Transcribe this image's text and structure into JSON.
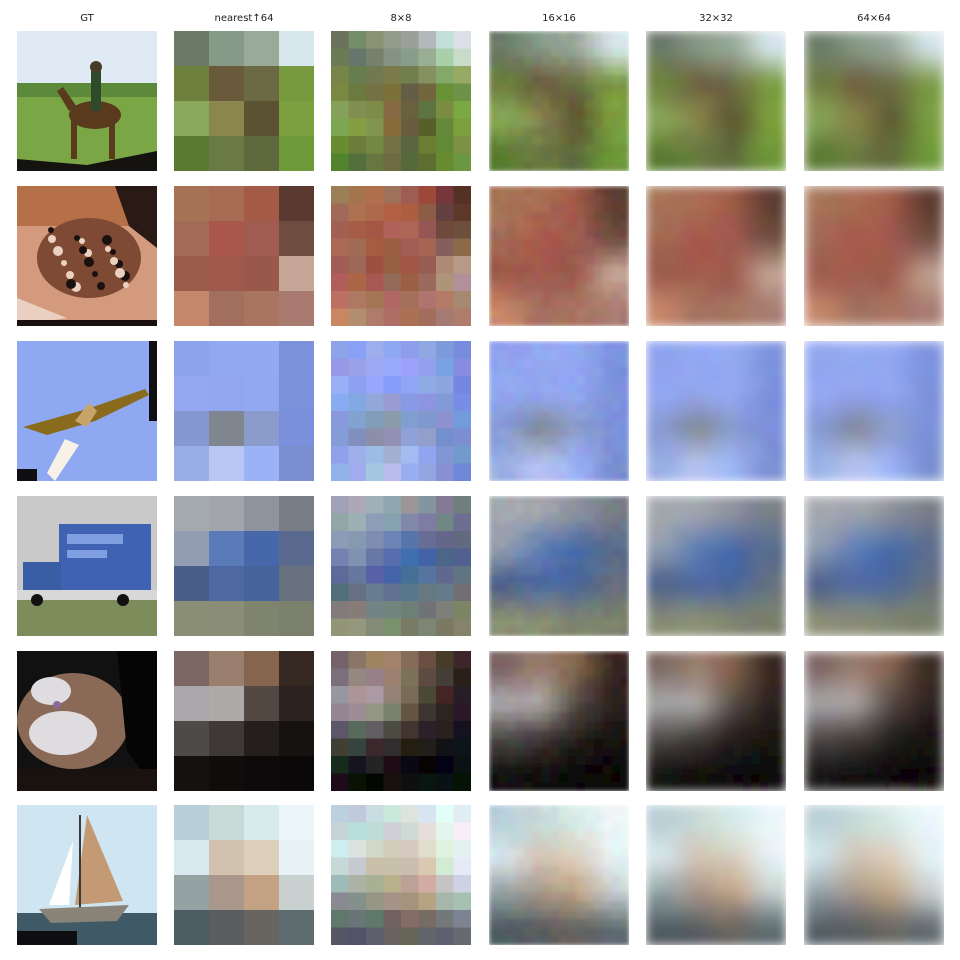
{
  "figure": {
    "columns": [
      {
        "label": "GT",
        "kind": "ground-truth"
      },
      {
        "label": "nearest↑64",
        "kind": "upsampled-4x4",
        "grid": 4,
        "blur": 0
      },
      {
        "label": "8×8",
        "kind": "latent-8",
        "grid": 8,
        "blur": 0
      },
      {
        "label": "16×16",
        "kind": "latent-16",
        "grid": 16,
        "blur": 2.5
      },
      {
        "label": "32×32",
        "kind": "latent-32",
        "grid": 16,
        "blur": 5
      },
      {
        "label": "64×64",
        "kind": "latent-64",
        "grid": 16,
        "blur": 6
      }
    ],
    "rows": [
      {
        "subject": "horse with rider on grass",
        "palette": [
          "#6e8a3c",
          "#8fb25a",
          "#dfeaf2"
        ],
        "gt": {
          "sky": "#dfeaf4",
          "ground": "#7aa646",
          "subject": "#5a3a1c",
          "accent": "#2e4a2a",
          "shadow": "#15130f"
        },
        "coarse": [
          [
            "#6a7a66",
            "#869a88",
            "#9aaa98",
            "#d8e6ee"
          ],
          [
            "#6d803c",
            "#6a5a3c",
            "#6b6a44",
            "#779a3e"
          ],
          [
            "#8aa85a",
            "#8a864e",
            "#5a5230",
            "#7ca040"
          ],
          [
            "#5a7a30",
            "#6a7a44",
            "#5e6a3c",
            "#6e9a3a"
          ]
        ]
      },
      {
        "subject": "frog on reddish background",
        "palette": [
          "#a8674c",
          "#6e4838",
          "#d6b4a4"
        ],
        "gt": {
          "sky": "#d49a7e",
          "ground": "#2a1a16",
          "subject": "#7e4a34",
          "accent": "#e9d0c0",
          "shadow": "#1a1010"
        },
        "coarse": [
          [
            "#a77357",
            "#a86b54",
            "#a35a47",
            "#5a3a30"
          ],
          [
            "#a36a56",
            "#a8574a",
            "#a15c52",
            "#6f4c40"
          ],
          [
            "#9b5a4a",
            "#a05a4c",
            "#9a584a",
            "#c6a696"
          ],
          [
            "#c7876a",
            "#a26e5e",
            "#a97460",
            "#a87a70"
          ]
        ]
      },
      {
        "subject": "airplane in blue sky",
        "palette": [
          "#9aaaf0",
          "#7888d8",
          "#e8eefc"
        ],
        "gt": {
          "sky": "#8fa8f2",
          "ground": "#eef1fb",
          "subject": "#8a6a1c",
          "accent": "#f7f1e8",
          "shadow": "#0f0f12"
        },
        "coarse": [
          [
            "#8ea3ee",
            "#93a8f2",
            "#93a9f2",
            "#7c92dd"
          ],
          [
            "#93a7f2",
            "#91a5f0",
            "#92a8f2",
            "#7b91dc"
          ],
          [
            "#8598d2",
            "#7f8690",
            "#8b9ccc",
            "#7b90dc"
          ],
          [
            "#9aaee6",
            "#b8c6f2",
            "#9cb2f6",
            "#7a8ed0"
          ]
        ]
      },
      {
        "subject": "blue box truck",
        "palette": [
          "#8e96a6",
          "#4f6fb0",
          "#8a9070"
        ],
        "gt": {
          "sky": "#c9c9c9",
          "ground": "#7c8c5a",
          "subject": "#3f62b2",
          "accent": "#f1f1f1",
          "shadow": "#111111"
        },
        "coarse": [
          [
            "#a4aaae",
            "#a2a6ac",
            "#8e939e",
            "#787e86"
          ],
          [
            "#929cb2",
            "#5a7ab8",
            "#4668aa",
            "#5a6a8e"
          ],
          [
            "#4a5e8a",
            "#4e68a4",
            "#46649c",
            "#66707e"
          ],
          [
            "#8a8e74",
            "#8a8e76",
            "#7e846e",
            "#7a806c"
          ]
        ]
      },
      {
        "subject": "cat face close-up",
        "palette": [
          "#6e5448",
          "#c9c6c8",
          "#1a1412"
        ],
        "gt": {
          "sky": "#111111",
          "ground": "#1a120e",
          "subject": "#8a6a56",
          "accent": "#dedcdf",
          "shadow": "#050505"
        },
        "coarse": [
          [
            "#7c6662",
            "#9a7e6e",
            "#86654e",
            "#352820"
          ],
          [
            "#a9a7aa",
            "#aeaaa8",
            "#544942",
            "#2c2220"
          ],
          [
            "#4e4a48",
            "#3e3836",
            "#241e1c",
            "#161210"
          ],
          [
            "#141210",
            "#0e0d0c",
            "#0c0a0a",
            "#0a0808"
          ]
        ]
      },
      {
        "subject": "sailboat on water",
        "palette": [
          "#d8e6ec",
          "#bfa88e",
          "#4a5a60"
        ],
        "gt": {
          "sky": "#cfe6f2",
          "ground": "#3f5966",
          "subject": "#c49a74",
          "accent": "#ffffff",
          "shadow": "#0e0e10"
        },
        "coarse": [
          [
            "#b7cfd8",
            "#c8dad8",
            "#d6ecea",
            "#ecf6fa"
          ],
          [
            "#d8e8ee",
            "#d1c2b0",
            "#dccfbc",
            "#e6f2f6"
          ],
          [
            "#94a2a4",
            "#a8978a",
            "#c2a282",
            "#c8d0d0"
          ],
          [
            "#4e5c64",
            "#5a5e60",
            "#686460",
            "#5e6c70"
          ]
        ]
      }
    ]
  }
}
